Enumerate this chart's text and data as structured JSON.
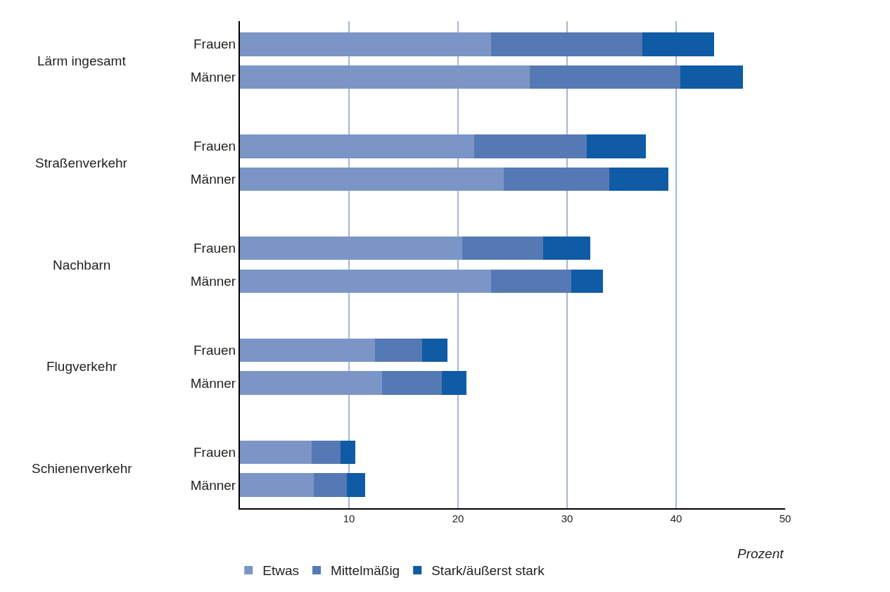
{
  "chart_data": {
    "type": "bar",
    "orientation": "horizontal",
    "stacked": true,
    "categories": [
      "Frauen",
      "Männer",
      "Frauen",
      "Männer",
      "Frauen",
      "Männer",
      "Frauen",
      "Männer",
      "Frauen",
      "Männer"
    ],
    "annotations": [
      "Lärm ingesamt",
      "Straßenverkehr",
      "Nachbarn",
      "Flugverkehr",
      "Schienenverkehr"
    ],
    "series": [
      {
        "name": "Etwas",
        "color": "#7b96c6",
        "values": [
          23.0,
          26.6,
          21.5,
          24.2,
          20.4,
          23.0,
          12.4,
          13.0,
          6.6,
          6.8
        ]
      },
      {
        "name": "Mittelmäßig",
        "color": "#5579b4",
        "values": [
          13.9,
          13.8,
          10.3,
          9.7,
          7.4,
          7.4,
          4.3,
          5.5,
          2.6,
          3.0
        ]
      },
      {
        "name": "Stark/äußerst stark",
        "color": "#0f5ba5",
        "values": [
          6.6,
          5.7,
          5.4,
          5.4,
          4.3,
          2.9,
          2.3,
          2.3,
          1.4,
          1.7
        ]
      }
    ],
    "xlim": [
      0,
      50
    ],
    "xticks": [
      10,
      20,
      30,
      40,
      50
    ],
    "xlabel": "Prozent",
    "grid": "x",
    "legend": "bottom left"
  }
}
